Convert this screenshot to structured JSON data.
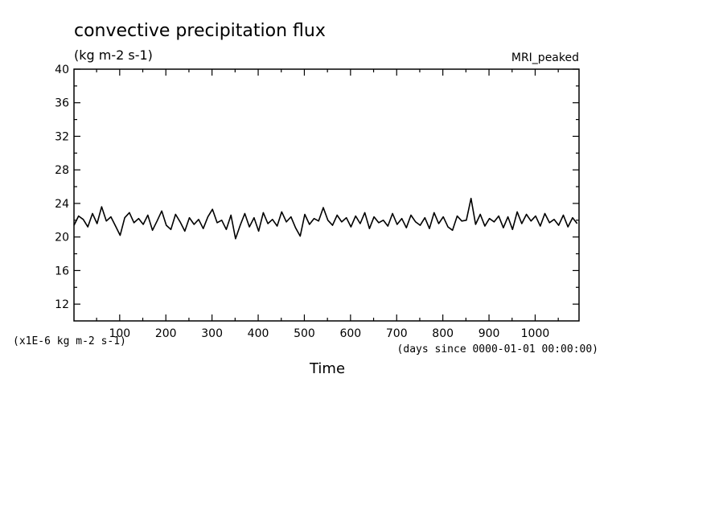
{
  "chart_data": {
    "type": "line",
    "title": "convective precipitation flux",
    "units_label": "(kg m-2 s-1)",
    "model_label": "MRI_peaked",
    "scale_label": "(x1E-6 kg m-2 s-1)",
    "xlabel": "Time",
    "x_units": "(days since 0000-01-01 00:00:00)",
    "ylabel": "",
    "xlim": [
      1,
      1095
    ],
    "ylim": [
      10,
      40
    ],
    "x_ticks": [
      100,
      200,
      300,
      400,
      500,
      600,
      700,
      800,
      900,
      1000
    ],
    "y_ticks": [
      12,
      16,
      20,
      24,
      28,
      32,
      36,
      40
    ],
    "grid": false,
    "series": [
      {
        "x": [
          1,
          11,
          21,
          31,
          41,
          51,
          61,
          71,
          81,
          91,
          101,
          111,
          121,
          131,
          141,
          151,
          161,
          171,
          181,
          191,
          201,
          211,
          221,
          231,
          241,
          251,
          261,
          271,
          281,
          291,
          301,
          311,
          321,
          331,
          341,
          351,
          361,
          371,
          381,
          391,
          401,
          411,
          421,
          431,
          441,
          451,
          461,
          471,
          481,
          491,
          501,
          511,
          521,
          531,
          541,
          551,
          561,
          571,
          581,
          591,
          601,
          611,
          621,
          631,
          641,
          651,
          661,
          671,
          681,
          691,
          701,
          711,
          721,
          731,
          741,
          751,
          761,
          771,
          781,
          791,
          801,
          811,
          821,
          831,
          841,
          851,
          861,
          871,
          881,
          891,
          901,
          911,
          921,
          931,
          941,
          951,
          961,
          971,
          981,
          991,
          1001,
          1011,
          1021,
          1031,
          1041,
          1051,
          1061,
          1071,
          1081,
          1091
        ],
        "values": [
          21.4,
          22.5,
          22.1,
          21.2,
          22.8,
          21.6,
          23.6,
          21.9,
          22.4,
          21.3,
          20.2,
          22.3,
          22.9,
          21.7,
          22.2,
          21.5,
          22.6,
          20.8,
          21.9,
          23.1,
          21.4,
          20.9,
          22.7,
          21.8,
          20.7,
          22.3,
          21.5,
          22.1,
          21.0,
          22.4,
          23.3,
          21.7,
          22.0,
          20.9,
          22.6,
          19.8,
          21.4,
          22.8,
          21.2,
          22.3,
          20.7,
          22.9,
          21.6,
          22.1,
          21.3,
          23.0,
          21.8,
          22.4,
          21.1,
          20.1,
          22.7,
          21.5,
          22.2,
          21.9,
          23.5,
          22.0,
          21.4,
          22.6,
          21.8,
          22.3,
          21.2,
          22.5,
          21.6,
          22.9,
          21.0,
          22.4,
          21.7,
          22.0,
          21.3,
          22.8,
          21.5,
          22.2,
          21.1,
          22.6,
          21.8,
          21.4,
          22.3,
          21.0,
          22.9,
          21.6,
          22.4,
          21.2,
          20.8,
          22.5,
          21.9,
          22.0,
          24.6,
          21.5,
          22.7,
          21.3,
          22.2,
          21.8,
          22.5,
          21.1,
          22.4,
          20.9,
          23.0,
          21.6,
          22.7,
          21.9,
          22.5,
          21.3,
          22.8,
          21.7,
          22.1,
          21.4,
          22.6,
          21.2,
          22.3,
          21.6
        ]
      }
    ]
  }
}
